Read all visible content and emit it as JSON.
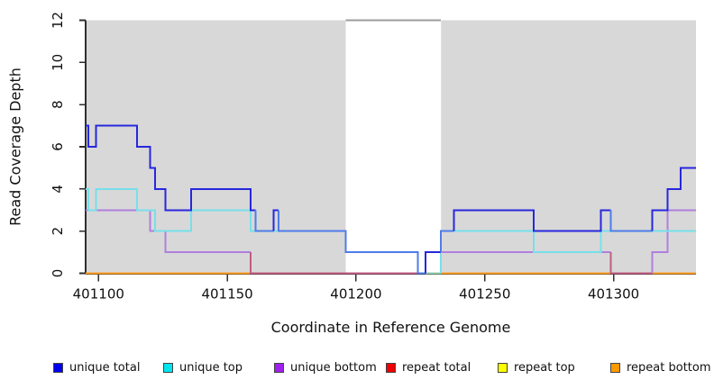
{
  "figure": {
    "background": "#ffffff",
    "plot_background": "#d8d8d8",
    "axis_color": "#2e2e2e",
    "text_color": "#111111"
  },
  "chart_data": {
    "type": "line",
    "style": "step-after",
    "title": "",
    "xlabel": "Coordinate in Reference Genome",
    "ylabel": "Read Coverage Depth",
    "xlim": [
      401095,
      401332
    ],
    "ylim": [
      0,
      12
    ],
    "x_ticks": [
      401100,
      401150,
      401200,
      401250,
      401300
    ],
    "y_ticks": [
      0,
      2,
      4,
      6,
      8,
      10,
      12
    ],
    "grid": "off",
    "legend_position": "bottom",
    "plot_bg": "#d8d8d8",
    "masked_region": {
      "x_start": 401196,
      "x_end": 401233,
      "fill": "#ffffff",
      "cap_line_y": 12,
      "cap_line_color": "#9c9c9c"
    },
    "series": [
      {
        "name": "unique total",
        "legend_color": "#0000ee",
        "line_color": "#2727dd",
        "steps": [
          [
            401095,
            7
          ],
          [
            401096,
            6
          ],
          [
            401099,
            7
          ],
          [
            401115,
            6
          ],
          [
            401120,
            5
          ],
          [
            401122,
            4
          ],
          [
            401126,
            3
          ],
          [
            401136,
            4
          ],
          [
            401159,
            3
          ],
          [
            401161,
            2
          ],
          [
            401168,
            3
          ],
          [
            401170,
            2
          ],
          [
            401196,
            1
          ],
          [
            401224,
            0
          ],
          [
            401227,
            1
          ],
          [
            401233,
            2
          ],
          [
            401238,
            3
          ],
          [
            401269,
            2
          ],
          [
            401295,
            3
          ],
          [
            401299,
            2
          ],
          [
            401315,
            3
          ],
          [
            401321,
            4
          ],
          [
            401326,
            5
          ]
        ]
      },
      {
        "name": "unique top",
        "legend_color": "#00e5ee",
        "line_color": "#76e0ea",
        "steps": [
          [
            401095,
            4
          ],
          [
            401096,
            3
          ],
          [
            401099,
            4
          ],
          [
            401115,
            3
          ],
          [
            401122,
            2
          ],
          [
            401136,
            3
          ],
          [
            401159,
            2
          ],
          [
            401196,
            1
          ],
          [
            401224,
            0
          ],
          [
            401233,
            2
          ],
          [
            401269,
            1
          ],
          [
            401295,
            2
          ]
        ]
      },
      {
        "name": "unique bottom",
        "legend_color": "#a020f0",
        "line_color": "#b07fdd",
        "steps": [
          [
            401095,
            3
          ],
          [
            401120,
            2
          ],
          [
            401126,
            1
          ],
          [
            401159,
            0
          ],
          [
            401227,
            1
          ],
          [
            401299,
            0
          ],
          [
            401315,
            1
          ],
          [
            401321,
            3
          ]
        ]
      },
      {
        "name": "repeat total",
        "legend_color": "#ee0000",
        "line_color": "#dd2222",
        "steps": [
          [
            401095,
            0
          ]
        ]
      },
      {
        "name": "repeat top",
        "legend_color": "#ffff00",
        "line_color": "#eeee00",
        "steps": [
          [
            401095,
            0
          ]
        ]
      },
      {
        "name": "repeat bottom",
        "legend_color": "#ff9900",
        "line_color": "#ff9d1f",
        "steps": [
          [
            401095,
            0
          ]
        ]
      }
    ]
  }
}
